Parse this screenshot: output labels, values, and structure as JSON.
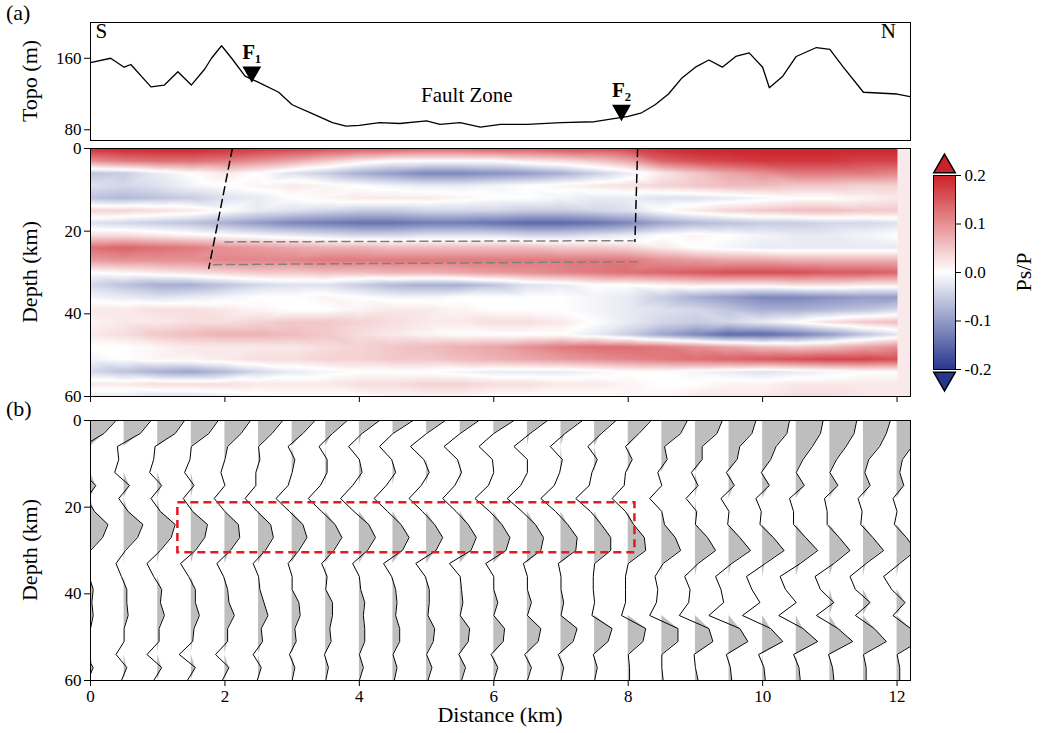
{
  "chart_data": {
    "type": "receiver_function_profile",
    "xlabel": "Distance (km)",
    "xlim": [
      0,
      12.2
    ],
    "xticks": [
      0,
      2,
      4,
      6,
      8,
      10,
      12
    ],
    "distance": [
      0,
      0.5,
      1,
      1.5,
      2,
      2.5,
      3,
      3.5,
      4,
      4.5,
      5,
      5.5,
      6,
      6.5,
      7,
      7.5,
      8,
      8.5,
      9,
      9.5,
      10,
      10.5,
      11,
      11.5,
      12
    ],
    "depth": [
      0,
      3,
      6,
      9,
      12,
      15,
      18,
      21,
      24,
      27,
      30,
      33,
      36,
      39,
      42,
      45,
      48,
      51,
      54,
      57,
      60
    ],
    "amplitude": [
      [
        0.19,
        0.2,
        0.2,
        0.2,
        0.19,
        0.18,
        0.17,
        0.16,
        0.15,
        0.15,
        0.14,
        0.14,
        0.15,
        0.15,
        0.16,
        0.16,
        0.17,
        0.19,
        0.2,
        0.2,
        0.2,
        0.2,
        0.2,
        0.2,
        0.2
      ],
      [
        0.1,
        0.12,
        0.13,
        0.13,
        0.12,
        0.1,
        0.08,
        0.05,
        0.02,
        0,
        0,
        0,
        0,
        0.02,
        0.03,
        0.05,
        0.08,
        0.14,
        0.16,
        0.17,
        0.18,
        0.18,
        0.18,
        0.17,
        0.17
      ],
      [
        -0.06,
        -0.05,
        -0.02,
        0,
        0.02,
        0,
        -0.03,
        -0.05,
        -0.08,
        -0.1,
        -0.12,
        -0.12,
        -0.11,
        -0.1,
        -0.08,
        -0.05,
        -0.02,
        0.02,
        0.05,
        0.08,
        0.1,
        0.12,
        0.12,
        0.12,
        0.11
      ],
      [
        -0.03,
        -0.04,
        -0.03,
        -0.01,
        0,
        0.01,
        0.02,
        0.01,
        0,
        -0.01,
        -0.02,
        -0.02,
        -0.01,
        0,
        0.01,
        0.02,
        0.03,
        0.04,
        0.05,
        0.06,
        0.06,
        0.05,
        0.05,
        0.04,
        0.04
      ],
      [
        -0.06,
        -0.07,
        -0.06,
        -0.05,
        -0.03,
        -0.02,
        0,
        0.01,
        0.02,
        0.02,
        0.02,
        0.01,
        0,
        0,
        -0.01,
        -0.02,
        -0.02,
        -0.03,
        -0.03,
        -0.02,
        -0.01,
        0,
        0,
        0.01,
        0.02
      ],
      [
        0.04,
        0.04,
        0.03,
        0.02,
        0,
        -0.02,
        -0.03,
        -0.04,
        -0.05,
        -0.05,
        -0.04,
        -0.04,
        -0.04,
        -0.05,
        -0.05,
        -0.04,
        -0.03,
        0,
        0.02,
        0.04,
        0.05,
        0.06,
        0.06,
        0.05,
        0.05
      ],
      [
        -0.03,
        -0.04,
        -0.05,
        -0.06,
        -0.08,
        -0.1,
        -0.12,
        -0.13,
        -0.14,
        -0.14,
        -0.13,
        -0.13,
        -0.14,
        -0.15,
        -0.15,
        -0.14,
        -0.12,
        -0.09,
        -0.07,
        -0.06,
        -0.05,
        -0.05,
        -0.04,
        -0.04,
        -0.03
      ],
      [
        0.03,
        0.03,
        0.02,
        0.01,
        0,
        -0.01,
        -0.02,
        -0.03,
        -0.04,
        -0.04,
        -0.03,
        -0.03,
        -0.03,
        -0.04,
        -0.04,
        -0.03,
        -0.02,
        0,
        0.01,
        0,
        -0.01,
        -0.02,
        -0.02,
        -0.01,
        0
      ],
      [
        0.13,
        0.14,
        0.13,
        0.12,
        0.1,
        0.09,
        0.08,
        0.07,
        0.07,
        0.06,
        0.06,
        0.06,
        0.06,
        0.06,
        0.05,
        0.05,
        0.04,
        0.02,
        0,
        -0.01,
        -0.02,
        -0.02,
        -0.02,
        -0.02,
        -0.02
      ],
      [
        0.09,
        0.1,
        0.1,
        0.1,
        0.11,
        0.11,
        0.11,
        0.12,
        0.12,
        0.12,
        0.12,
        0.12,
        0.12,
        0.12,
        0.12,
        0.12,
        0.12,
        0.1,
        0.09,
        0.08,
        0.08,
        0.07,
        0.07,
        0.07,
        0.07
      ],
      [
        0,
        0.01,
        0.02,
        0.03,
        0.04,
        0.05,
        0.05,
        0.06,
        0.06,
        0.07,
        0.07,
        0.08,
        0.09,
        0.1,
        0.11,
        0.12,
        0.13,
        0.14,
        0.15,
        0.16,
        0.16,
        0.16,
        0.15,
        0.15,
        0.14
      ],
      [
        -0.04,
        -0.06,
        -0.08,
        -0.08,
        -0.06,
        -0.04,
        -0.03,
        -0.03,
        -0.05,
        -0.07,
        -0.08,
        -0.08,
        -0.06,
        -0.03,
        -0.02,
        0,
        0,
        0.01,
        0.02,
        0.02,
        0.02,
        0.03,
        0.03,
        0.02,
        0.02
      ],
      [
        -0.01,
        -0.02,
        -0.03,
        -0.02,
        -0.01,
        0,
        0,
        0.01,
        0,
        -0.01,
        -0.01,
        0,
        0,
        0,
        0,
        -0.01,
        -0.02,
        -0.05,
        -0.08,
        -0.1,
        -0.12,
        -0.12,
        -0.11,
        -0.1,
        -0.1
      ],
      [
        0.02,
        0.02,
        0.03,
        0.03,
        0.02,
        0.01,
        0,
        0,
        0.01,
        0.02,
        0.02,
        0.01,
        0,
        0,
        0,
        -0.01,
        -0.02,
        -0.03,
        -0.04,
        -0.06,
        -0.08,
        -0.08,
        -0.07,
        -0.06,
        -0.04
      ],
      [
        0.01,
        0.02,
        0.02,
        0.03,
        0.03,
        0.04,
        0.05,
        0.05,
        0.04,
        0.03,
        0.02,
        0.02,
        0.03,
        0.03,
        0.02,
        0,
        -0.02,
        -0.04,
        -0.05,
        -0.04,
        -0.02,
        0,
        0.03,
        0.05,
        0.06
      ],
      [
        0.02,
        0.03,
        0.05,
        0.06,
        0.07,
        0.07,
        0.06,
        0.05,
        0.03,
        0.02,
        0.01,
        0,
        0,
        0,
        0,
        -0.02,
        -0.05,
        -0.09,
        -0.12,
        -0.15,
        -0.15,
        -0.13,
        -0.1,
        -0.06,
        -0.03
      ],
      [
        0,
        0,
        0.01,
        0.02,
        0.02,
        0.02,
        0.02,
        0.03,
        0.04,
        0.05,
        0.06,
        0.07,
        0.08,
        0.1,
        0.12,
        0.13,
        0.13,
        0.12,
        0.1,
        0.08,
        0.06,
        0.05,
        0.06,
        0.08,
        0.1
      ],
      [
        -0.01,
        0,
        0.01,
        0.01,
        0.02,
        0.03,
        0.03,
        0.04,
        0.04,
        0.05,
        0.05,
        0.06,
        0.07,
        0.08,
        0.09,
        0.1,
        0.11,
        0.12,
        0.13,
        0.14,
        0.15,
        0.16,
        0.17,
        0.17,
        0.16
      ],
      [
        -0.04,
        -0.06,
        -0.08,
        -0.09,
        -0.07,
        -0.04,
        -0.02,
        -0.01,
        0,
        0,
        0,
        -0.01,
        -0.02,
        -0.02,
        -0.02,
        -0.01,
        0,
        0,
        -0.01,
        -0.02,
        -0.03,
        -0.02,
        -0.01,
        0,
        0
      ],
      [
        0.02,
        0.02,
        0.03,
        0.03,
        0.03,
        0.02,
        0.02,
        0.02,
        0.03,
        0.03,
        0.04,
        0.04,
        0.03,
        0.03,
        0.02,
        0.02,
        0.01,
        0,
        0,
        0.01,
        0.01,
        0.02,
        0.02,
        0.02,
        0.02
      ],
      [
        -0.02,
        -0.02,
        -0.03,
        -0.03,
        -0.02,
        -0.01,
        0,
        0,
        0,
        0.01,
        0.01,
        0.01,
        0,
        0,
        0,
        0,
        0.01,
        0.01,
        0.02,
        0.02,
        0.02,
        0.03,
        0.03,
        0.02,
        0.02
      ]
    ],
    "panels": [
      {
        "label": "(a)",
        "type": "line",
        "ylabel": "Topo (m)",
        "x": [
          0,
          0.3,
          0.5,
          0.6,
          0.9,
          1.1,
          1.3,
          1.5,
          1.7,
          1.8,
          1.95,
          2.1,
          2.3,
          2.5,
          2.8,
          3.0,
          3.3,
          3.6,
          3.8,
          4.0,
          4.3,
          4.6,
          5.0,
          5.2,
          5.5,
          5.8,
          6.1,
          6.5,
          7.0,
          7.5,
          8.0,
          8.2,
          8.4,
          8.6,
          8.8,
          9.0,
          9.2,
          9.4,
          9.6,
          9.8,
          10.0,
          10.1,
          10.3,
          10.5,
          10.8,
          11.0,
          11.2,
          11.5,
          12.0,
          12.2
        ],
        "values": [
          155,
          160,
          150,
          153,
          128,
          130,
          145,
          130,
          148,
          160,
          174,
          160,
          140,
          133,
          122,
          108,
          98,
          88,
          84,
          85,
          88,
          87,
          90,
          86,
          88,
          83,
          86,
          86,
          88,
          89,
          95,
          99,
          108,
          120,
          138,
          150,
          158,
          150,
          162,
          166,
          150,
          127,
          140,
          162,
          172,
          170,
          150,
          122,
          120,
          117
        ],
        "ylim": [
          68,
          200
        ],
        "yticks": [
          80,
          160
        ],
        "color": "#000000",
        "tick_labels": "y",
        "annotations": [
          {
            "text": "S",
            "x": 0.16,
            "y": 190
          },
          {
            "text": "N",
            "x": 11.87,
            "y": 190
          },
          {
            "text": "Fault Zone",
            "x": 5.6,
            "y": 119
          }
        ],
        "markers": [
          {
            "text": "F₁",
            "x": 2.4,
            "y": 137
          },
          {
            "text": "F₂",
            "x": 7.9,
            "y": 94
          }
        ],
        "marker": "triangle"
      },
      {
        "type": "heatmap",
        "ylabel": "Depth (km)",
        "ylim": [
          0,
          60
        ],
        "yticks": [
          0,
          20,
          40,
          60
        ],
        "tick_labels": "y",
        "colorbar": {
          "label": "Ps/P",
          "range": [
            -0.2,
            0.2
          ],
          "ticks": [
            -0.2,
            -0.1,
            {
              "value": 0,
              "label": "0.0"
            },
            0.1,
            0.2
          ],
          "colors": [
            "#27378f",
            "#ffffff",
            "#cc2229"
          ]
        },
        "lines": [
          {
            "points": [
              [
                2.11,
                0
              ],
              [
                1.76,
                29
              ]
            ],
            "color": "#000000",
            "line_style": "dashed"
          },
          {
            "points": [
              [
                8.14,
                0
              ],
              [
                8.1,
                22.5
              ]
            ],
            "color": "#000000",
            "line_style": "dashed"
          },
          {
            "points": [
              [
                2.0,
                22.6
              ],
              [
                8.07,
                22.3
              ]
            ],
            "color": "#808080",
            "line_style": "dashed"
          },
          {
            "points": [
              [
                1.83,
                28.1
              ],
              [
                8.14,
                27.4
              ]
            ],
            "color": "#808080",
            "line_style": "dashed"
          }
        ]
      },
      {
        "label": "(b)",
        "type": "wiggle",
        "ylabel": "Depth (km)",
        "ylim": [
          0,
          60
        ],
        "yticks": [
          0,
          20,
          40,
          60
        ],
        "color": "#bebebe",
        "box": {
          "x": [
            1.3,
            8.1
          ],
          "y": [
            19,
            30.5
          ],
          "color": "#e41a1c",
          "line_style": "dashed"
        }
      }
    ]
  }
}
